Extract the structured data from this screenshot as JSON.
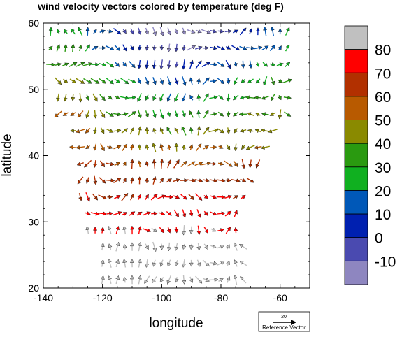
{
  "chart_data": {
    "type": "vector-field",
    "title": "wind velocity vectors colored by temperature (deg F)",
    "xlabel": "longitude",
    "ylabel": "latitude",
    "xlim": [
      -140,
      -50
    ],
    "ylim": [
      20,
      60
    ],
    "xticks": [
      {
        "value": -140,
        "label": "-140"
      },
      {
        "value": -120,
        "label": "-120"
      },
      {
        "value": -100,
        "label": "-100"
      },
      {
        "value": -80,
        "label": "-80"
      },
      {
        "value": -60,
        "label": "-60"
      }
    ],
    "yticks": [
      {
        "value": 20,
        "label": "20"
      },
      {
        "value": 30,
        "label": "30"
      },
      {
        "value": 40,
        "label": "40"
      },
      {
        "value": 50,
        "label": "50"
      },
      {
        "value": 60,
        "label": "60"
      }
    ],
    "colorbar": {
      "labels": [
        "80",
        "70",
        "60",
        "50",
        "40",
        "30",
        "20",
        "10",
        "0",
        "-10"
      ],
      "colors_top_to_bottom": [
        "#c0c0c0",
        "#ff0000",
        "#b23000",
        "#b85a00",
        "#8a8a00",
        "#2a9a10",
        "#10b020",
        "#0058b8",
        "#0020b0",
        "#4a4ab0",
        "#8e86c0"
      ]
    },
    "reference_vector": {
      "magnitude_label": "20",
      "label": "Reference Vector",
      "magnitude": 20
    },
    "vectors_description": "Gridded wind vectors (2.5 deg spacing) over North America, temperature-colored: warm (red/orange) in the south-west and south-center, cool (blue/purple) across the north-center, green/olive at mid-latitudes; data present only within the continental mask.",
    "grid": {
      "lon_start": -137.5,
      "lon_end": -52.5,
      "lon_step": 2.5,
      "lat_start": 21.25,
      "lat_end": 58.75,
      "lat_step": 2.5
    }
  }
}
